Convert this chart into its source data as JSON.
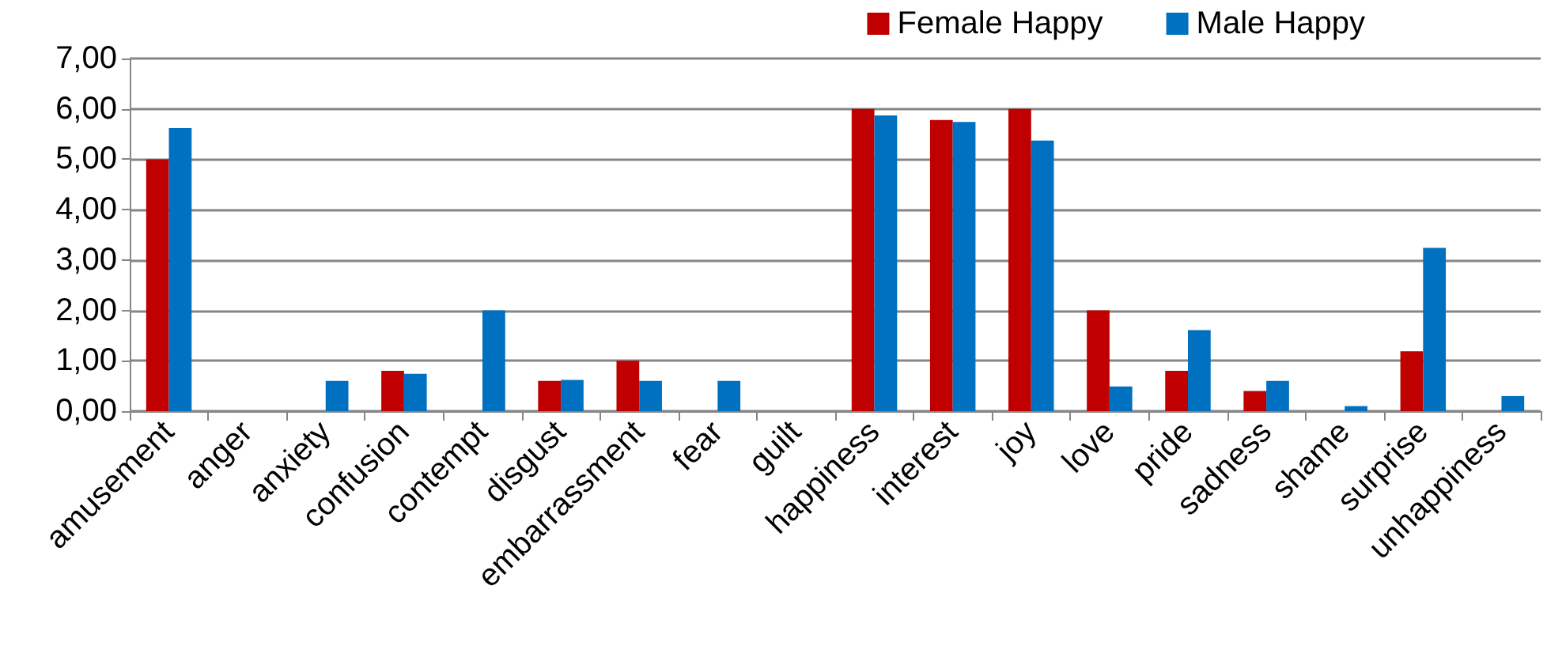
{
  "chart_data": {
    "type": "bar",
    "categories": [
      "amusement",
      "anger",
      "anxiety",
      "confusion",
      "contempt",
      "disgust",
      "embarrassment",
      "fear",
      "guilt",
      "happiness",
      "interest",
      "joy",
      "love",
      "pride",
      "sadness",
      "shame",
      "surprise",
      "unhappiness"
    ],
    "series": [
      {
        "name": "Female Happy",
        "color": "#c00000",
        "values": [
          5.0,
          0,
          0,
          0.8,
          0,
          0.6,
          1.0,
          0,
          0,
          6.0,
          5.78,
          6.0,
          2.0,
          0.8,
          0.4,
          0,
          1.19,
          0
        ]
      },
      {
        "name": "Male Happy",
        "color": "#0070c0",
        "values": [
          5.62,
          0,
          0.6,
          0.74,
          2.0,
          0.62,
          0.6,
          0.6,
          0,
          5.87,
          5.74,
          5.37,
          0.49,
          1.61,
          0.6,
          0.1,
          3.24,
          0.3
        ]
      }
    ],
    "ylim": [
      0,
      7
    ],
    "yticks": [
      {
        "value": 0,
        "label": "0,00"
      },
      {
        "value": 1,
        "label": "1,00"
      },
      {
        "value": 2,
        "label": "2,00"
      },
      {
        "value": 3,
        "label": "3,00"
      },
      {
        "value": 4,
        "label": "4,00"
      },
      {
        "value": 5,
        "label": "5,00"
      },
      {
        "value": 6,
        "label": "6,00"
      },
      {
        "value": 7,
        "label": "7,00"
      }
    ],
    "grid": "y",
    "legend": "top right"
  }
}
